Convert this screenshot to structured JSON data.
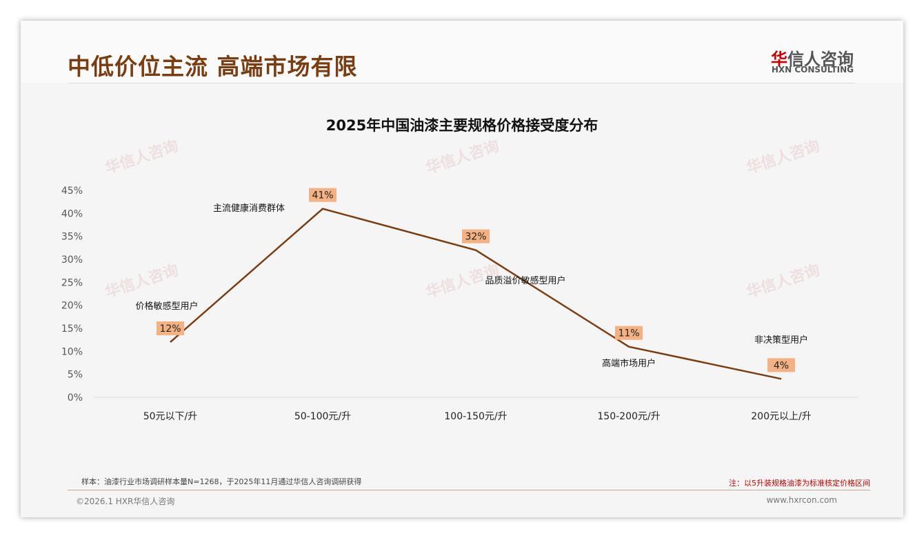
{
  "header": {
    "title": "中低价位主流 高端市场有限",
    "logo_cn_red": "华",
    "logo_cn": "信人咨询",
    "logo_en": "HXN CONSULTING"
  },
  "watermark": "华信人咨询 HXN CONSULTING",
  "chart_data": {
    "type": "line",
    "title": "2025年中国油漆主要规格价格接受度分布",
    "categories": [
      "50元以下/升",
      "50-100元/升",
      "100-150元/升",
      "150-200元/升",
      "200元以上/升"
    ],
    "values": [
      12,
      41,
      32,
      11,
      4
    ],
    "data_labels": [
      "12%",
      "41%",
      "32%",
      "11%",
      "4%"
    ],
    "annotations": [
      "价格敏感型用户",
      "主流健康消费群体",
      "品质溢价敏感型用户",
      "高端市场用户",
      "非决策型用户"
    ],
    "ylim": [
      0,
      45
    ],
    "yticks": [
      "0%",
      "5%",
      "10%",
      "15%",
      "20%",
      "25%",
      "30%",
      "35%",
      "40%",
      "45%"
    ],
    "grid": false,
    "line_color": "#7b3d10",
    "label_bg": "#f4b183"
  },
  "footer": {
    "sample": "样本：油漆行业市场调研样本量N=1268，于2025年11月通过华信人咨询调研获得",
    "note": "注：以5升装规格油漆为标准核定价格区间",
    "copyright": "©2026.1 HXR华信人咨询",
    "website": "www.hxrcon.com"
  }
}
